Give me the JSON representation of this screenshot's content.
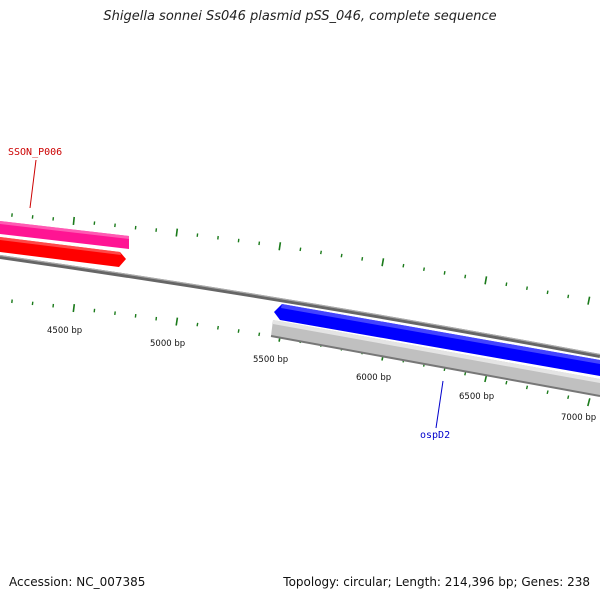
{
  "title": "Shigella sonnei Ss046 plasmid pSS_046, complete sequence",
  "footer": {
    "accession": "Accession: NC_007385",
    "summary": "Topology: circular; Length: 214,396 bp; Genes: 238"
  },
  "colors": {
    "backbone": "#888888",
    "tick": "#1a7a1a",
    "gene_pink": "#ff1493",
    "gene_red": "#ff0000",
    "gene_blue": "#0000ff",
    "gene_gray": "#c0c0c0"
  },
  "scale": {
    "labels": [
      "4500 bp",
      "5000 bp",
      "5500 bp",
      "6000 bp",
      "6500 bp",
      "7000 bp"
    ]
  },
  "genes": [
    {
      "label": "SSON_P006",
      "color": "#cc0000"
    },
    {
      "label": "ospD2",
      "color": "#0000cc"
    }
  ]
}
